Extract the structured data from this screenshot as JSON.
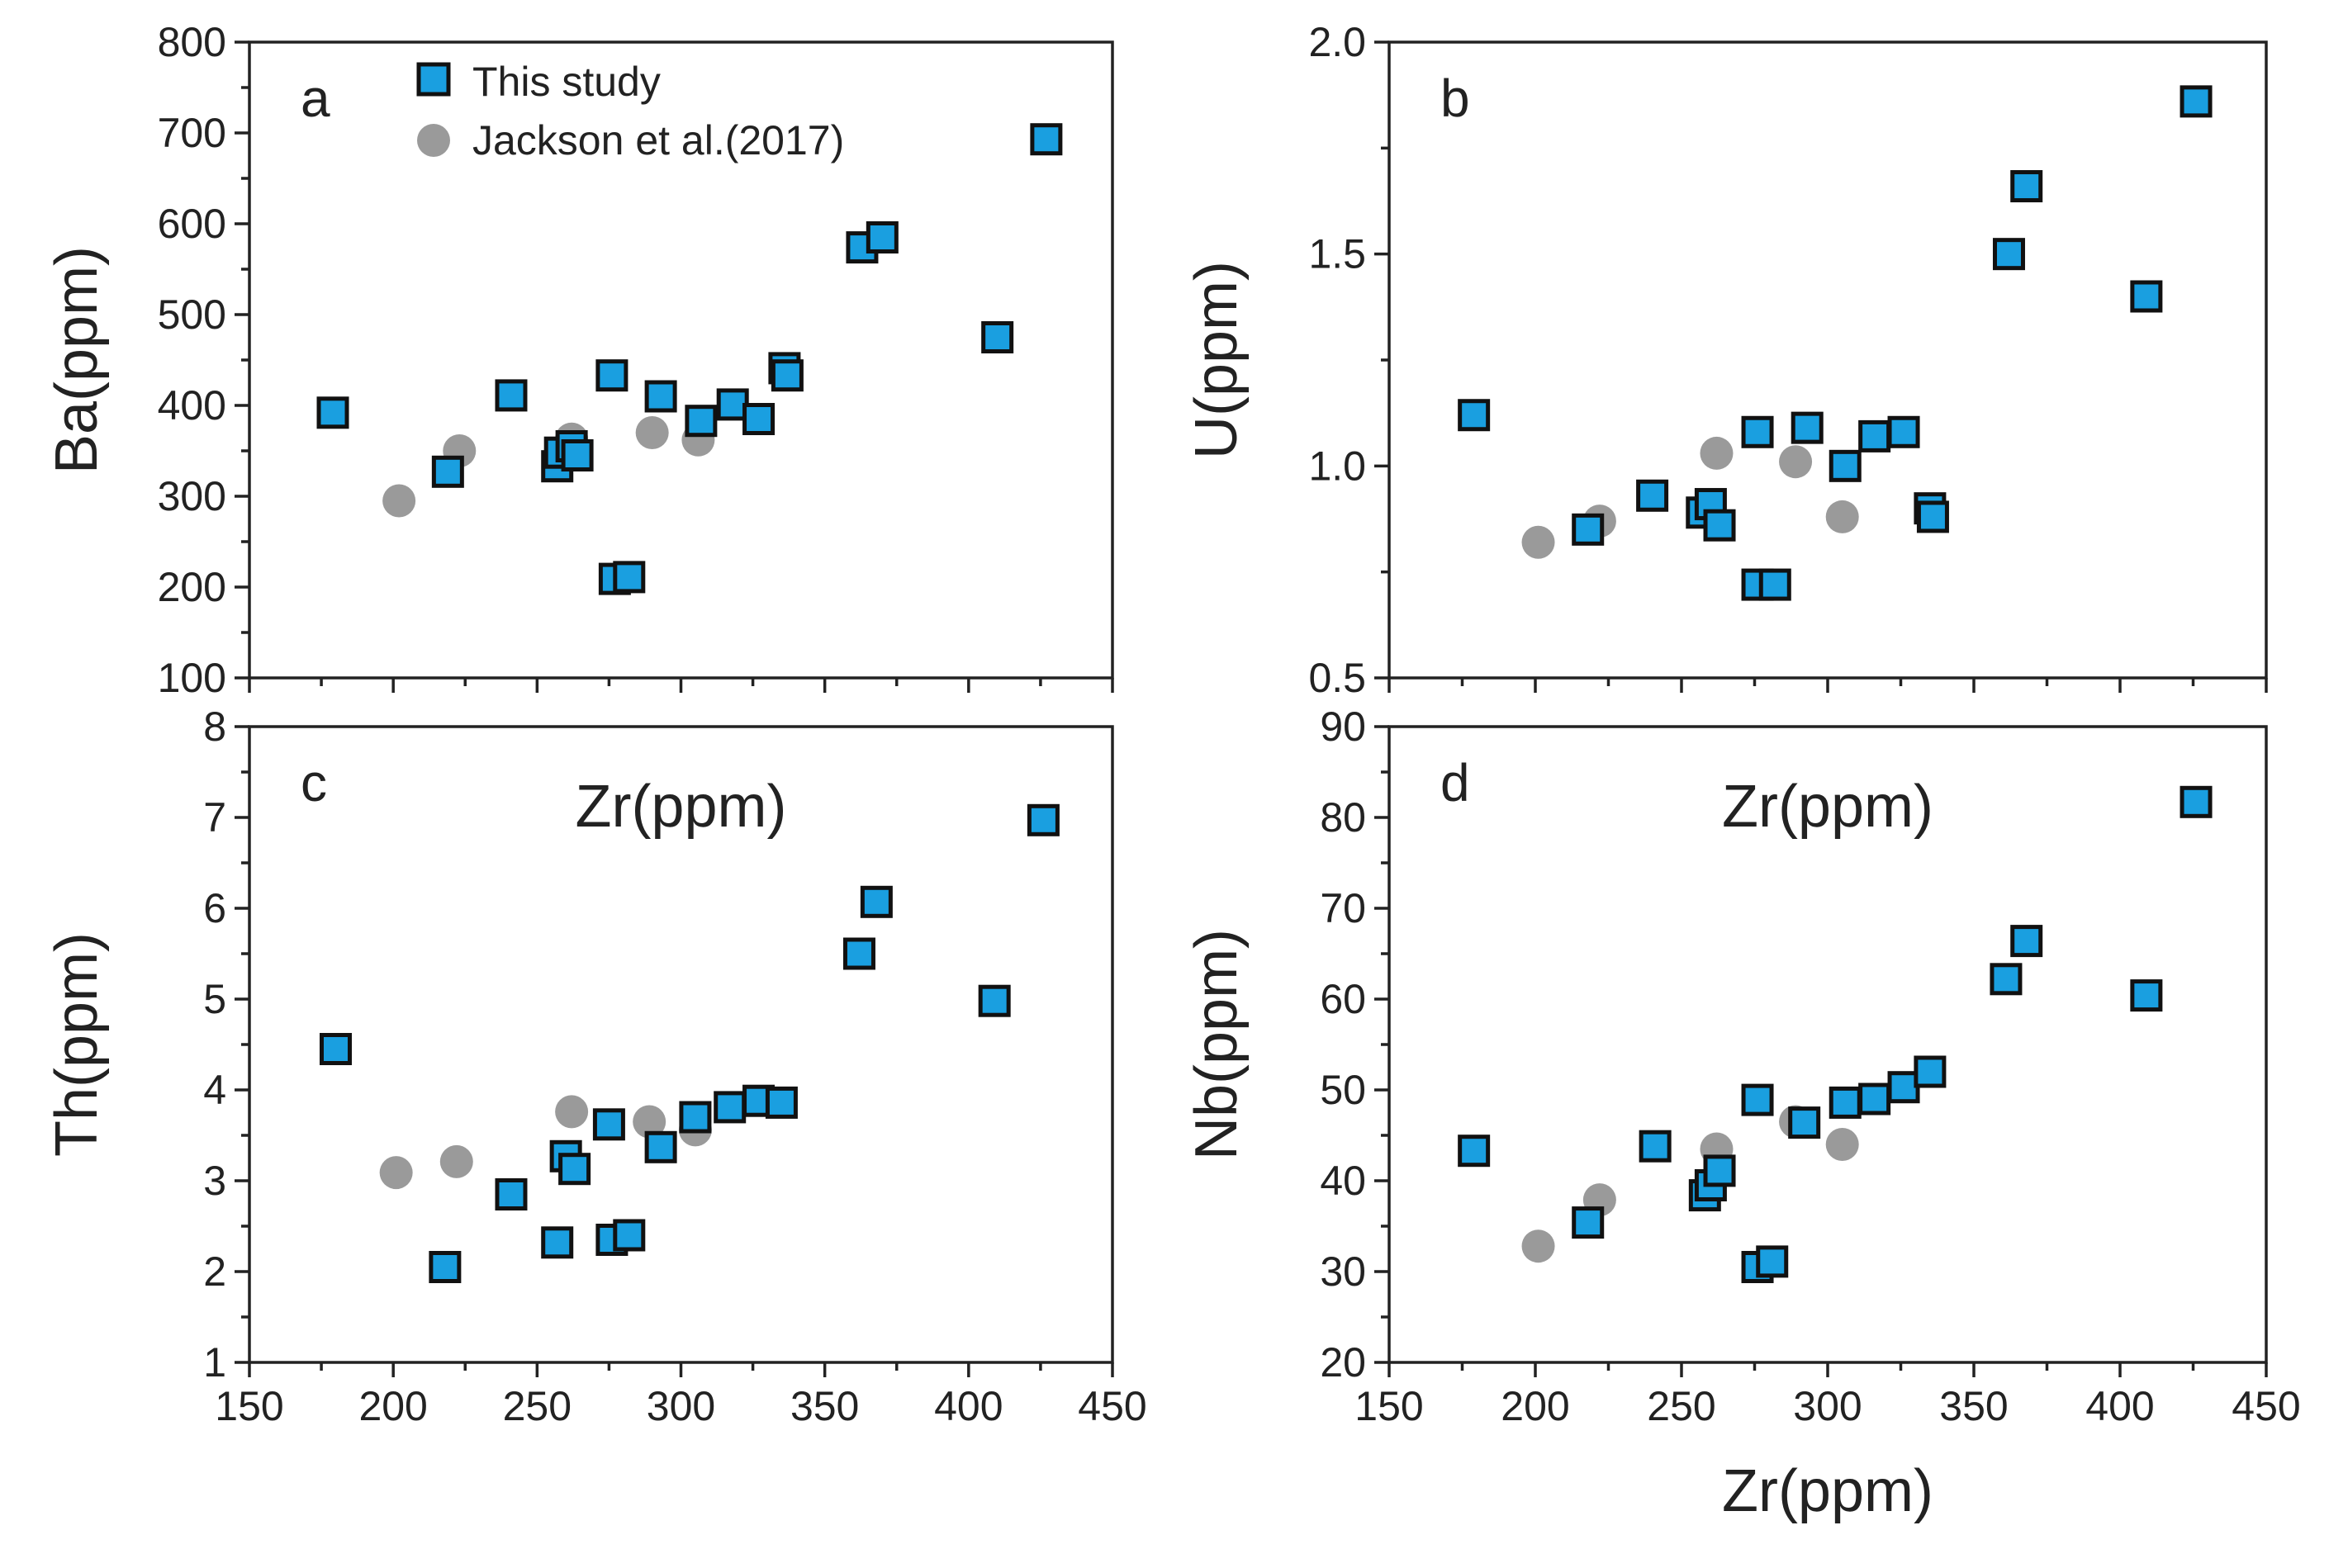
{
  "legend": {
    "this_study": "This study",
    "jackson": "Jackson et al.(2017)"
  },
  "colors": {
    "this_study_fill": "#1a9fe0",
    "this_study_stroke": "#111111",
    "jackson_fill": "#9a9a9a"
  },
  "chart_data": [
    {
      "type": "scatter",
      "panel": "a",
      "xlabel": "Zr(ppm)",
      "ylabel": "Ba(ppm)",
      "xlim": [
        150,
        450
      ],
      "ylim": [
        100,
        800
      ],
      "xticks": [
        150,
        200,
        250,
        300,
        350,
        400,
        450
      ],
      "yticks": [
        100,
        200,
        300,
        400,
        500,
        600,
        700,
        800
      ],
      "legend_position": "top-left",
      "series": [
        {
          "name": "This study",
          "marker": "square",
          "points": [
            [
              179,
              392
            ],
            [
              219,
              327
            ],
            [
              241,
              411
            ],
            [
              257,
              333
            ],
            [
              258,
              348
            ],
            [
              262,
              355
            ],
            [
              264,
              345
            ],
            [
              276,
              433
            ],
            [
              277,
              209
            ],
            [
              282,
              211
            ],
            [
              293,
              410
            ],
            [
              307,
              383
            ],
            [
              318,
              401
            ],
            [
              327,
              385
            ],
            [
              336,
              441
            ],
            [
              337,
              433
            ],
            [
              363,
              574
            ],
            [
              370,
              585
            ],
            [
              410,
              475
            ],
            [
              427,
              693
            ]
          ]
        },
        {
          "name": "Jackson et al.(2017)",
          "marker": "circle",
          "points": [
            [
              202,
              295
            ],
            [
              223,
              350
            ],
            [
              262,
              363
            ],
            [
              290,
              370
            ],
            [
              306,
              362
            ]
          ]
        }
      ]
    },
    {
      "type": "scatter",
      "panel": "b",
      "xlabel": "Zr(ppm)",
      "ylabel": "U(ppm)",
      "xlim": [
        150,
        450
      ],
      "ylim": [
        0.5,
        2.0
      ],
      "xticks": [
        150,
        200,
        250,
        300,
        350,
        400,
        450
      ],
      "yticks": [
        0.5,
        1.0,
        1.5,
        2.0
      ],
      "series": [
        {
          "name": "This study",
          "marker": "square",
          "points": [
            [
              179,
              1.12
            ],
            [
              218,
              0.85
            ],
            [
              240,
              0.93
            ],
            [
              257,
              0.89
            ],
            [
              260,
              0.91
            ],
            [
              263,
              0.86
            ],
            [
              276,
              1.08
            ],
            [
              276,
              0.72
            ],
            [
              282,
              0.72
            ],
            [
              293,
              1.09
            ],
            [
              306,
              1.0
            ],
            [
              316,
              1.07
            ],
            [
              326,
              1.08
            ],
            [
              335,
              0.9
            ],
            [
              336,
              0.88
            ],
            [
              362,
              1.5
            ],
            [
              368,
              1.66
            ],
            [
              409,
              1.4
            ],
            [
              426,
              1.86
            ]
          ]
        },
        {
          "name": "Jackson et al.(2017)",
          "marker": "circle",
          "points": [
            [
              201,
              0.82
            ],
            [
              222,
              0.87
            ],
            [
              262,
              1.03
            ],
            [
              289,
              1.01
            ],
            [
              305,
              0.88
            ]
          ]
        }
      ]
    },
    {
      "type": "scatter",
      "panel": "c",
      "xlabel": "",
      "ylabel": "Th(ppm)",
      "xlim": [
        150,
        450
      ],
      "ylim": [
        1,
        8
      ],
      "xticks": [
        150,
        200,
        250,
        300,
        350,
        400,
        450
      ],
      "yticks": [
        1,
        2,
        3,
        4,
        5,
        6,
        7,
        8
      ],
      "series": [
        {
          "name": "This study",
          "marker": "square",
          "points": [
            [
              180,
              4.45
            ],
            [
              218,
              2.05
            ],
            [
              241,
              2.85
            ],
            [
              257,
              2.32
            ],
            [
              260,
              3.27
            ],
            [
              263,
              3.13
            ],
            [
              275,
              3.62
            ],
            [
              276,
              2.35
            ],
            [
              282,
              2.4
            ],
            [
              293,
              3.37
            ],
            [
              305,
              3.7
            ],
            [
              317,
              3.81
            ],
            [
              327,
              3.88
            ],
            [
              335,
              3.86
            ],
            [
              362,
              5.5
            ],
            [
              368,
              6.07
            ],
            [
              409,
              4.98
            ],
            [
              426,
              6.97
            ]
          ]
        },
        {
          "name": "Jackson et al.(2017)",
          "marker": "circle",
          "points": [
            [
              201,
              3.09
            ],
            [
              222,
              3.21
            ],
            [
              262,
              3.76
            ],
            [
              289,
              3.65
            ],
            [
              305,
              3.56
            ]
          ]
        }
      ]
    },
    {
      "type": "scatter",
      "panel": "d",
      "xlabel": "Zr(ppm)",
      "ylabel": "Nb(ppm)",
      "xlim": [
        150,
        450
      ],
      "ylim": [
        20,
        90
      ],
      "xticks": [
        150,
        200,
        250,
        300,
        350,
        400,
        450
      ],
      "yticks": [
        20,
        30,
        40,
        50,
        60,
        70,
        80,
        90
      ],
      "series": [
        {
          "name": "This study",
          "marker": "square",
          "points": [
            [
              179,
              43.3
            ],
            [
              218,
              35.4
            ],
            [
              241,
              43.8
            ],
            [
              258,
              38.4
            ],
            [
              260,
              39.5
            ],
            [
              263,
              41.1
            ],
            [
              276,
              48.9
            ],
            [
              276,
              30.5
            ],
            [
              281,
              31.1
            ],
            [
              292,
              46.4
            ],
            [
              306,
              48.6
            ],
            [
              316,
              49.0
            ],
            [
              326,
              50.3
            ],
            [
              335,
              52.0
            ],
            [
              361,
              62.2
            ],
            [
              368,
              66.4
            ],
            [
              409,
              60.4
            ],
            [
              426,
              81.7
            ]
          ]
        },
        {
          "name": "Jackson et al.(2017)",
          "marker": "circle",
          "points": [
            [
              201,
              32.8
            ],
            [
              222,
              37.9
            ],
            [
              262,
              43.5
            ],
            [
              289,
              46.5
            ],
            [
              305,
              44.0
            ]
          ]
        }
      ]
    }
  ]
}
